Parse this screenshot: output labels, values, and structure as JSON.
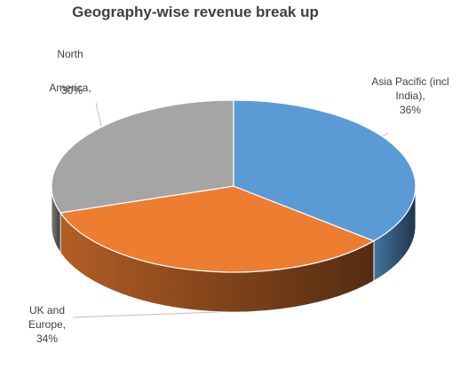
{
  "chart_data": {
    "type": "pie3d",
    "title": "Geography-wise revenue break up",
    "categories": [
      "Asia Pacific (incl India),",
      "UK and Europe,",
      "North America,"
    ],
    "values": [
      36,
      34,
      30
    ],
    "value_labels": [
      "36%",
      "34%",
      "30%"
    ],
    "colors": [
      "#5b9bd5",
      "#ed7d31",
      "#a5a5a5"
    ]
  }
}
